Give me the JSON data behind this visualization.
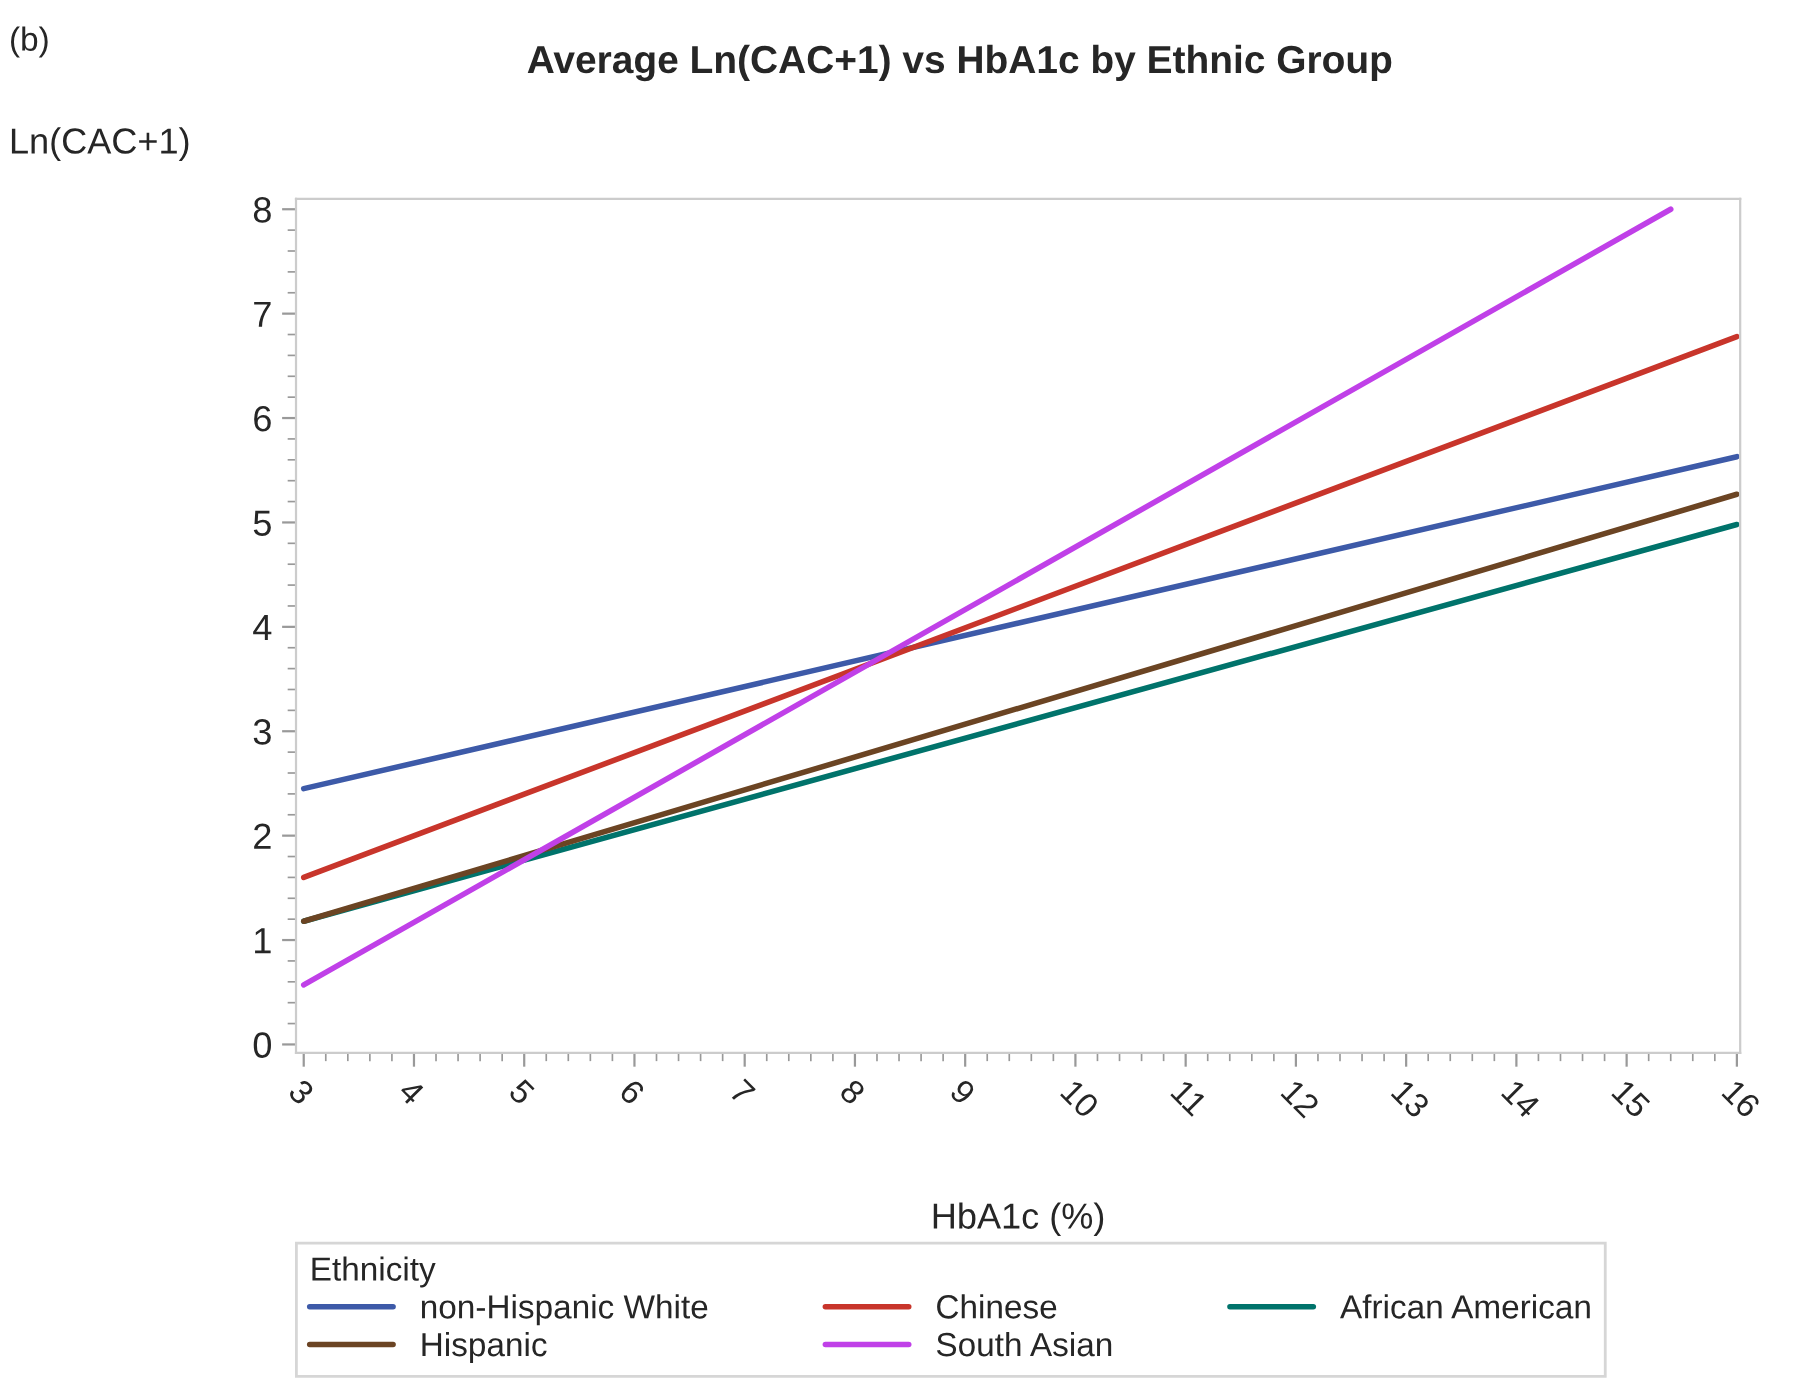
{
  "chart_data": {
    "type": "line",
    "title": "Average Ln(CAC+1) vs HbA1c by Ethnic Group",
    "xlabel": "HbA1c (%)",
    "ylabel": "Ln(CAC+1)",
    "legend_title": "Ethnicity",
    "annotations": [
      "(b)"
    ],
    "series": [
      {
        "name": "non-Hispanic White",
        "color": "#3d5aa8",
        "x": [
          3,
          16
        ],
        "values": [
          2.45,
          5.63
        ]
      },
      {
        "name": "Chinese",
        "color": "#c8352b",
        "x": [
          3,
          16
        ],
        "values": [
          1.6,
          6.78
        ]
      },
      {
        "name": "African American",
        "color": "#00736b",
        "x": [
          3,
          16
        ],
        "values": [
          1.18,
          4.98
        ]
      },
      {
        "name": "Hispanic",
        "color": "#6b4423",
        "x": [
          3,
          16
        ],
        "values": [
          1.18,
          5.27
        ]
      },
      {
        "name": "South Asian",
        "color": "#c040e8",
        "x": [
          3,
          15.4
        ],
        "values": [
          0.57,
          8.0
        ]
      }
    ],
    "xlim": [
      2.93,
      16.03
    ],
    "ylim": [
      -0.08,
      8.1
    ],
    "xticks": [
      3,
      4,
      5,
      6,
      7,
      8,
      9,
      10,
      11,
      12,
      13,
      14,
      15,
      16
    ],
    "yticks": [
      0,
      1,
      2,
      3,
      4,
      5,
      6,
      7,
      8
    ],
    "grid": false,
    "legend": "bottom",
    "marker": "none",
    "line_style": "solid"
  }
}
